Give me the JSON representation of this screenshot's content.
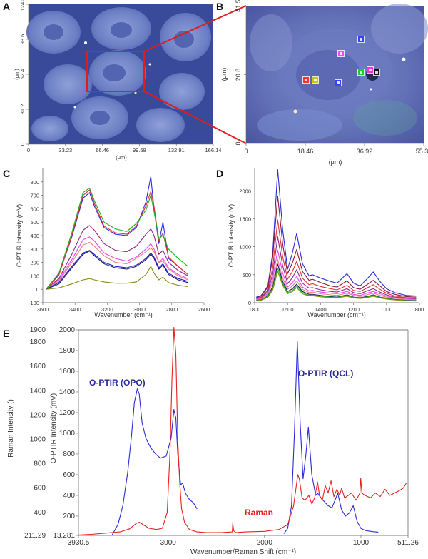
{
  "panels": {
    "A": {
      "label": "A",
      "x_ticks": [
        "0",
        "33.23",
        "66.46",
        "99.68",
        "132.91",
        "166.14"
      ],
      "y_ticks": [
        "0",
        "31.2",
        "62.4",
        "93.6",
        "124.8"
      ],
      "x_unit": "(μm)",
      "y_unit": "(μm)"
    },
    "B": {
      "label": "B",
      "x_ticks": [
        "0",
        "18.46",
        "36.92",
        "55.38"
      ],
      "y_ticks": [
        "0",
        "20.8",
        "41.5"
      ],
      "x_unit": "(μm)",
      "y_unit": "(μm)",
      "markers": [
        {
          "color": "#ff3030"
        },
        {
          "color": "#c8c800"
        },
        {
          "color": "#3344ff"
        },
        {
          "color": "#ff44ff"
        },
        {
          "color": "#22cc22"
        },
        {
          "color": "#ff33cc"
        },
        {
          "color": "#111111"
        },
        {
          "color": "#3344ff"
        }
      ]
    }
  },
  "chart_data": [
    {
      "panel": "C",
      "type": "line",
      "xlabel": "Wavenumber (cm⁻¹)",
      "ylabel": "O-PTIR Intensity (mV)",
      "xlim": [
        3600,
        2600
      ],
      "ylim": [
        -100,
        900
      ],
      "x_ticks": [
        3600,
        3400,
        3200,
        3000,
        2800,
        2600
      ],
      "y_ticks": [
        -100,
        0,
        100,
        200,
        300,
        400,
        500,
        600,
        700,
        800
      ],
      "x": [
        3580,
        3500,
        3420,
        3350,
        3310,
        3280,
        3220,
        3150,
        3080,
        3020,
        2960,
        2930,
        2910,
        2880,
        2855,
        2820,
        2760,
        2700
      ],
      "series": [
        {
          "color": "#2a2ad8",
          "values": [
            0,
            110,
            390,
            680,
            720,
            620,
            460,
            410,
            400,
            460,
            650,
            840,
            600,
            340,
            500,
            230,
            170,
            110
          ]
        },
        {
          "color": "#e03030",
          "values": [
            0,
            105,
            400,
            700,
            740,
            640,
            470,
            420,
            410,
            470,
            620,
            730,
            620,
            360,
            420,
            240,
            170,
            110
          ]
        },
        {
          "color": "#1ab01a",
          "values": [
            0,
            120,
            420,
            720,
            755,
            660,
            500,
            450,
            430,
            490,
            590,
            700,
            580,
            380,
            400,
            300,
            230,
            170
          ]
        },
        {
          "color": "#8a2a8a",
          "values": [
            0,
            80,
            260,
            440,
            475,
            440,
            340,
            290,
            280,
            320,
            410,
            450,
            400,
            260,
            290,
            200,
            140,
            100
          ]
        },
        {
          "color": "#ee44ee",
          "values": [
            0,
            70,
            220,
            370,
            390,
            360,
            270,
            230,
            210,
            240,
            300,
            340,
            300,
            200,
            230,
            160,
            110,
            80
          ]
        },
        {
          "color": "#e08080",
          "values": [
            0,
            60,
            200,
            330,
            350,
            320,
            250,
            200,
            190,
            230,
            280,
            310,
            280,
            200,
            210,
            150,
            100,
            70
          ]
        },
        {
          "color": "#1a1a6a",
          "values": [
            0,
            40,
            160,
            260,
            285,
            250,
            190,
            160,
            150,
            170,
            220,
            260,
            230,
            150,
            180,
            110,
            70,
            50
          ]
        },
        {
          "color": "#2222c0",
          "values": [
            0,
            50,
            170,
            270,
            290,
            260,
            200,
            170,
            160,
            180,
            230,
            270,
            240,
            160,
            190,
            120,
            80,
            60
          ]
        },
        {
          "color": "#8a8a10",
          "values": [
            0,
            10,
            40,
            70,
            80,
            70,
            55,
            45,
            45,
            55,
            110,
            170,
            120,
            70,
            90,
            50,
            30,
            20
          ]
        }
      ]
    },
    {
      "panel": "D",
      "type": "line",
      "xlabel": "Wavenumber (cm⁻¹)",
      "ylabel": "O-PTIR Intensity (mV)",
      "xlim": [
        1800,
        800
      ],
      "ylim": [
        0,
        2400
      ],
      "x_ticks": [
        1800,
        1600,
        1400,
        1200,
        1000,
        800
      ],
      "y_ticks": [
        0,
        500,
        1000,
        1500,
        2000
      ],
      "x": [
        1790,
        1760,
        1720,
        1690,
        1660,
        1630,
        1600,
        1570,
        1545,
        1510,
        1470,
        1450,
        1400,
        1340,
        1300,
        1240,
        1200,
        1160,
        1120,
        1080,
        1040,
        1000,
        950,
        880,
        820
      ],
      "series": [
        {
          "color": "#2a2ad8",
          "values": [
            100,
            130,
            300,
            900,
            2380,
            1300,
            600,
            900,
            1240,
            700,
            480,
            500,
            440,
            380,
            350,
            520,
            350,
            300,
            420,
            550,
            380,
            250,
            180,
            130,
            120
          ]
        },
        {
          "color": "#8a1a3a",
          "values": [
            90,
            120,
            280,
            820,
            1910,
            1050,
            520,
            720,
            950,
            560,
            400,
            420,
            360,
            300,
            280,
            390,
            270,
            240,
            320,
            400,
            300,
            200,
            150,
            110,
            100
          ]
        },
        {
          "color": "#e03030",
          "values": [
            80,
            100,
            230,
            640,
            1480,
            820,
            420,
            560,
            740,
            440,
            320,
            340,
            290,
            250,
            230,
            310,
            220,
            200,
            260,
            320,
            240,
            170,
            120,
            90,
            80
          ]
        },
        {
          "color": "#8a2a8a",
          "values": [
            70,
            90,
            200,
            520,
            1180,
            660,
            340,
            450,
            590,
            350,
            260,
            270,
            230,
            200,
            190,
            250,
            180,
            160,
            210,
            250,
            190,
            140,
            100,
            80,
            70
          ]
        },
        {
          "color": "#ee44ee",
          "values": [
            60,
            80,
            170,
            430,
            940,
            530,
            280,
            360,
            470,
            280,
            210,
            220,
            190,
            170,
            160,
            200,
            150,
            130,
            170,
            200,
            160,
            120,
            90,
            70,
            60
          ]
        },
        {
          "color": "#e08080",
          "values": [
            50,
            70,
            150,
            360,
            770,
            440,
            240,
            300,
            390,
            240,
            180,
            190,
            160,
            140,
            130,
            170,
            130,
            110,
            140,
            170,
            130,
            100,
            80,
            60,
            55
          ]
        },
        {
          "color": "#1a1a6a",
          "values": [
            40,
            55,
            120,
            290,
            690,
            380,
            200,
            250,
            330,
            200,
            150,
            150,
            130,
            110,
            100,
            140,
            100,
            90,
            110,
            140,
            100,
            80,
            60,
            45,
            40
          ]
        },
        {
          "color": "#1ab01a",
          "values": [
            35,
            50,
            110,
            260,
            620,
            340,
            180,
            220,
            300,
            180,
            130,
            140,
            120,
            100,
            95,
            130,
            95,
            85,
            100,
            130,
            95,
            75,
            55,
            40,
            35
          ]
        },
        {
          "color": "#8a8a10",
          "values": [
            30,
            45,
            95,
            230,
            560,
            310,
            160,
            200,
            270,
            160,
            120,
            125,
            105,
            90,
            85,
            115,
            85,
            75,
            90,
            115,
            85,
            65,
            50,
            35,
            30
          ]
        }
      ]
    },
    {
      "panel": "E",
      "type": "line",
      "xlabel": "Wavenumber/Raman Shift (cm⁻¹)",
      "x_ticks": [
        3930.5,
        3000,
        2000,
        1000,
        511.26
      ],
      "xlim": [
        3930.5,
        511.26
      ],
      "left_axis": {
        "label": "Raman Intensity ()",
        "ylim": [
          211.29,
          1900
        ],
        "ticks": [
          211.29,
          400,
          600,
          800,
          1000,
          1200,
          1400,
          1600,
          1800,
          1900
        ]
      },
      "right_axis": {
        "label": "O-PTIR Intensity (mV)",
        "ylim": [
          13.281,
          2000
        ],
        "ticks": [
          13.281,
          200,
          400,
          600,
          800,
          1000,
          1200,
          1400,
          1600,
          1800,
          2000
        ]
      },
      "annotations": [
        "O-PTIR (OPO)",
        "O-PTIR (QCL)",
        "Raman"
      ],
      "series": [
        {
          "name": "O-PTIR (OPO)",
          "color": "#2a2ad8",
          "axis": "right",
          "x": [
            3580,
            3520,
            3470,
            3420,
            3380,
            3350,
            3320,
            3300,
            3270,
            3230,
            3180,
            3130,
            3080,
            3020,
            2970,
            2940,
            2920,
            2900,
            2870,
            2850,
            2820,
            2780,
            2740,
            2700
          ],
          "values": [
            20,
            120,
            300,
            620,
            980,
            1300,
            1430,
            1380,
            1100,
            950,
            860,
            800,
            760,
            780,
            950,
            1230,
            1150,
            800,
            500,
            520,
            420,
            360,
            330,
            270
          ]
        },
        {
          "name": "O-PTIR (QCL)",
          "color": "#2a2ad8",
          "axis": "right",
          "x": [
            1800,
            1760,
            1720,
            1690,
            1660,
            1630,
            1600,
            1570,
            1545,
            1510,
            1470,
            1450,
            1400,
            1340,
            1300,
            1240,
            1200,
            1160,
            1120,
            1080,
            1040,
            1000,
            950,
            880,
            820
          ],
          "values": [
            30,
            80,
            300,
            1000,
            1890,
            1100,
            560,
            800,
            1060,
            600,
            400,
            420,
            360,
            300,
            280,
            420,
            260,
            200,
            230,
            300,
            150,
            80,
            60,
            50,
            45
          ]
        },
        {
          "name": "Raman",
          "color": "#e82020",
          "axis": "left",
          "x": [
            3930,
            3800,
            3650,
            3500,
            3400,
            3330,
            3300,
            3260,
            3200,
            3120,
            3060,
            3010,
            2980,
            2960,
            2940,
            2920,
            2900,
            2880,
            2860,
            2830,
            2780,
            2700,
            2600,
            2450,
            2335,
            2330,
            2320,
            2300,
            2200,
            2000,
            1850,
            1760,
            1700,
            1670,
            1655,
            1640,
            1610,
            1580,
            1540,
            1510,
            1480,
            1450,
            1430,
            1400,
            1370,
            1340,
            1310,
            1280,
            1250,
            1220,
            1200,
            1170,
            1130,
            1100,
            1050,
            1010,
            1002,
            990,
            960,
            900,
            850,
            800,
            750,
            700,
            650,
            600,
            560,
            530
          ],
          "values": [
            215,
            220,
            230,
            240,
            265,
            310,
            320,
            300,
            270,
            260,
            270,
            400,
            900,
            1500,
            1920,
            1700,
            1000,
            650,
            430,
            320,
            260,
            240,
            235,
            235,
            240,
            310,
            250,
            235,
            240,
            245,
            260,
            300,
            450,
            620,
            710,
            680,
            520,
            500,
            540,
            470,
            520,
            650,
            540,
            500,
            620,
            560,
            660,
            530,
            590,
            540,
            600,
            520,
            540,
            560,
            500,
            560,
            680,
            560,
            540,
            520,
            560,
            530,
            590,
            540,
            560,
            580,
            600,
            640
          ]
        }
      ]
    }
  ]
}
